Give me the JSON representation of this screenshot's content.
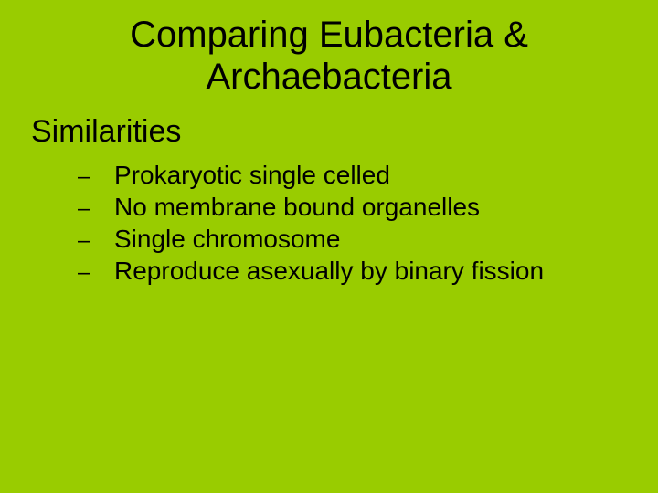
{
  "background_color": "#99cc00",
  "text_color": "#000000",
  "font_family": "Comic Sans MS",
  "title": {
    "line1": "Comparing Eubacteria &",
    "line2": "Archaebacteria",
    "fontsize": 40,
    "align": "center"
  },
  "subhead": {
    "text": "Similarities",
    "fontsize": 34
  },
  "bullets": {
    "marker": "–",
    "fontsize": 28,
    "items": [
      {
        "text": "Prokaryotic single celled"
      },
      {
        "text": "No membrane bound organelles"
      },
      {
        "text": "Single chromosome"
      },
      {
        "text": "Reproduce asexually by binary fission"
      }
    ]
  }
}
